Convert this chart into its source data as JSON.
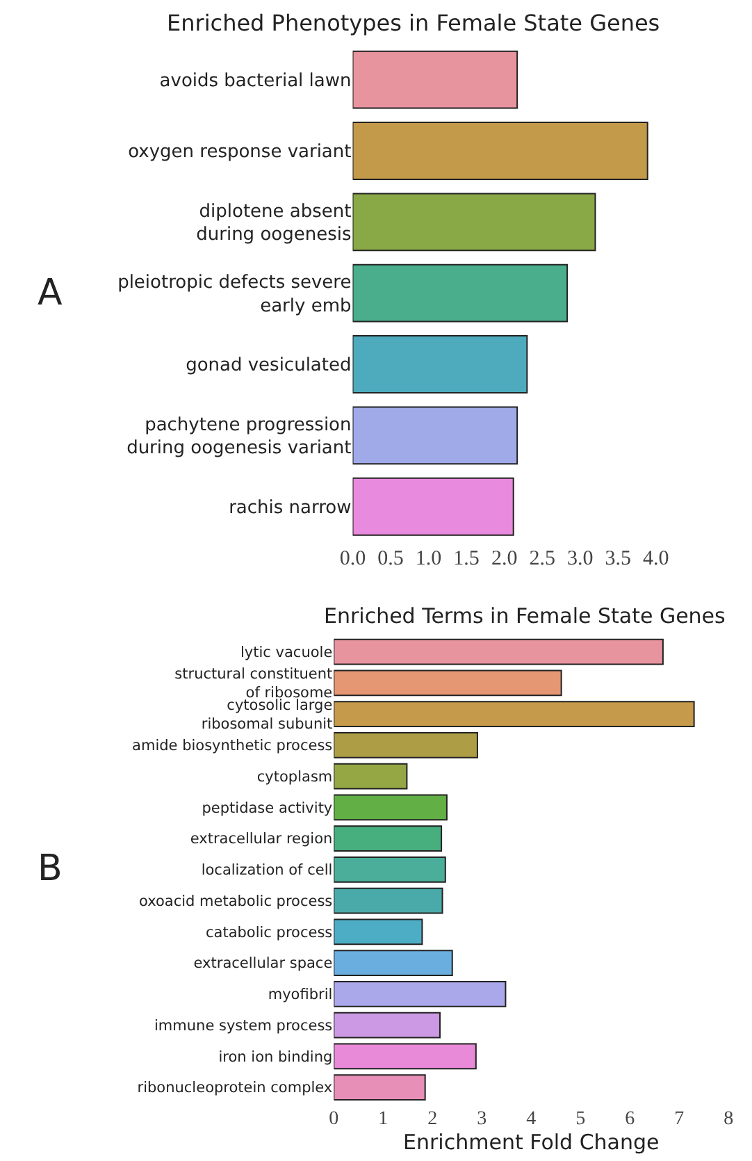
{
  "chart_data": [
    {
      "type": "bar",
      "orientation": "horizontal",
      "title": "Enriched Phenotypes in Female State Genes",
      "annotations": [
        "A"
      ],
      "categories": [
        "avoids bacterial lawn",
        "oxygen response variant",
        "diplotene absent\nduring oogenesis",
        "pleiotropic defects severe\nearly emb",
        "gonad vesiculated",
        "pachytene progression\nduring oogenesis variant",
        "rachis narrow"
      ],
      "values": [
        2.17,
        3.89,
        3.2,
        2.83,
        2.3,
        2.17,
        2.12
      ],
      "colors": [
        "#e8949f",
        "#c29a4a",
        "#89a846",
        "#4aae8c",
        "#4eabbd",
        "#a0aae8",
        "#e88ade"
      ],
      "xlim": [
        0,
        4
      ],
      "xticks": [
        {
          "value": 0,
          "label": "0.0"
        },
        {
          "value": 0.5,
          "label": "0.5"
        },
        {
          "value": 1,
          "label": "1.0"
        },
        {
          "value": 1.5,
          "label": "1.5"
        },
        {
          "value": 2,
          "label": "2.0"
        },
        {
          "value": 2.5,
          "label": "2.5"
        },
        {
          "value": 3,
          "label": "3.0"
        },
        {
          "value": 3.5,
          "label": "3.5"
        },
        {
          "value": 4,
          "label": "4.0"
        }
      ]
    },
    {
      "type": "bar",
      "orientation": "horizontal",
      "title": "Enriched Terms in Female State Genes",
      "xlabel": "Enrichment Fold Change",
      "annotations": [
        "B"
      ],
      "categories": [
        "lytic vacuole",
        "structural constituent\nof ribosome",
        "cytosolic large\nribosomal subunit",
        "amide biosynthetic process",
        "cytoplasm",
        "peptidase activity",
        "extracellular region",
        "localization of cell",
        "oxoacid metabolic process",
        "catabolic process",
        "extracellular space",
        "myofibril",
        "immune system process",
        "iron ion binding",
        "ribonucleoprotein complex"
      ],
      "values": [
        6.67,
        4.61,
        7.3,
        2.91,
        1.48,
        2.29,
        2.18,
        2.26,
        2.2,
        1.79,
        2.4,
        3.48,
        2.15,
        2.88,
        1.85
      ],
      "colors": [
        "#e8949f",
        "#e49772",
        "#c59a4a",
        "#ad9e45",
        "#95a645",
        "#62af45",
        "#47ae7d",
        "#4aae9a",
        "#4aaaa9",
        "#4dadc4",
        "#6aaee0",
        "#aaa8ea",
        "#cc9ae4",
        "#e88ad8",
        "#e88fb8"
      ],
      "xlim": [
        0,
        8
      ],
      "xticks": [
        0,
        1,
        2,
        3,
        4,
        5,
        6,
        7,
        8
      ]
    }
  ]
}
